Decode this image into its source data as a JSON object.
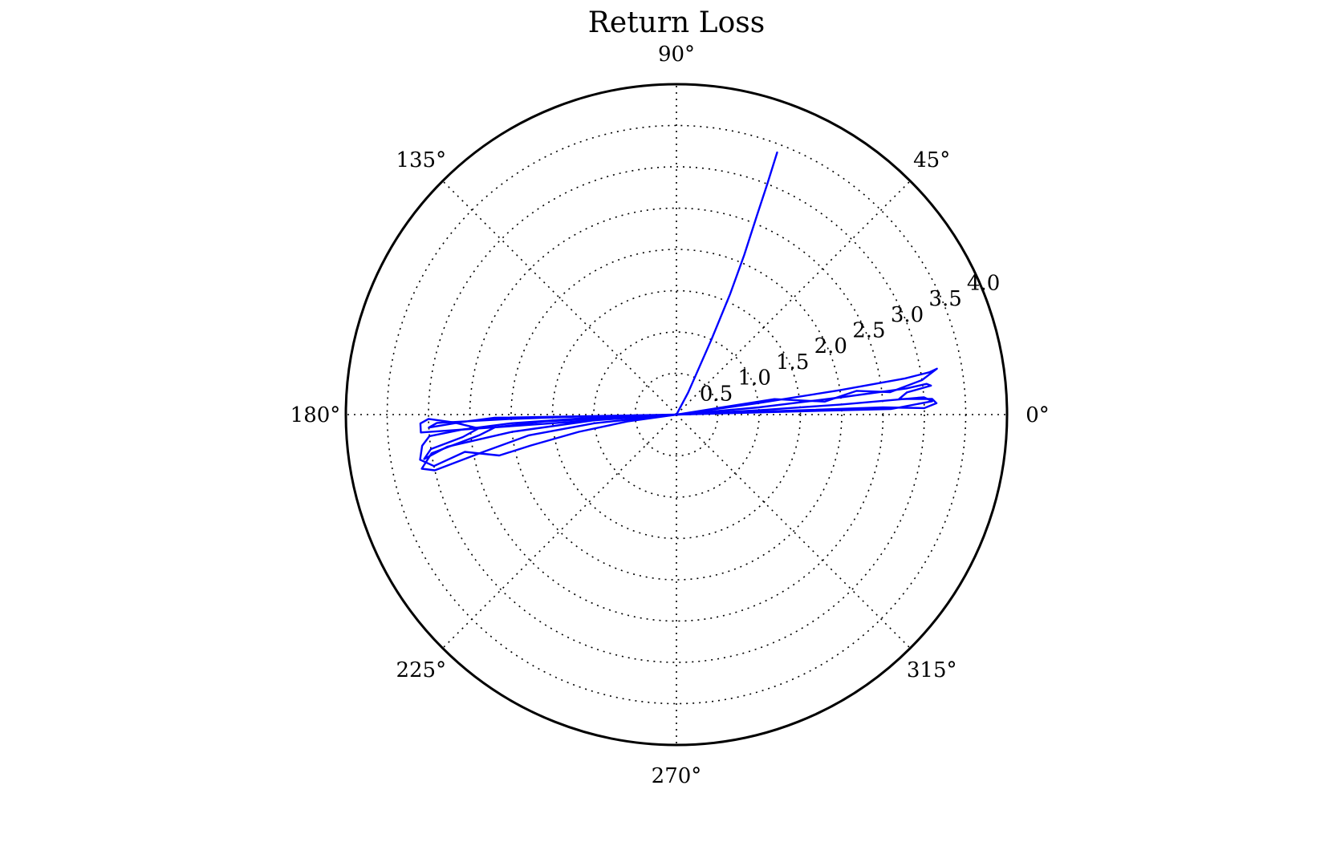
{
  "chart_data": {
    "type": "line",
    "projection": "polar",
    "title": "Return Loss",
    "rlim": [
      0,
      4.0
    ],
    "angular_ticks": [
      {
        "deg": 0,
        "label": "0°"
      },
      {
        "deg": 45,
        "label": "45°"
      },
      {
        "deg": 90,
        "label": "90°"
      },
      {
        "deg": 135,
        "label": "135°"
      },
      {
        "deg": 180,
        "label": "180°"
      },
      {
        "deg": 225,
        "label": "225°"
      },
      {
        "deg": 270,
        "label": "270°"
      },
      {
        "deg": 315,
        "label": "315°"
      }
    ],
    "radial_ticks": [
      {
        "r": 0.5,
        "label": "0.5"
      },
      {
        "r": 1.0,
        "label": "1.0"
      },
      {
        "r": 1.5,
        "label": "1.5"
      },
      {
        "r": 2.0,
        "label": "2.0"
      },
      {
        "r": 2.5,
        "label": "2.5"
      },
      {
        "r": 3.0,
        "label": "3.0"
      },
      {
        "r": 3.5,
        "label": "3.5"
      },
      {
        "r": 4.0,
        "label": "4.0"
      }
    ],
    "radial_label_angle_deg": 22.5,
    "grid": true,
    "line_color": "#0000ff",
    "series": [
      {
        "points": [
          [
            0,
            0
          ],
          [
            62,
            0.3
          ],
          [
            65,
            1.0
          ],
          [
            66,
            1.6
          ],
          [
            67,
            2.1
          ],
          [
            68,
            2.6
          ],
          [
            68.5,
            3.0
          ],
          [
            69,
            3.4
          ]
        ]
      },
      {
        "points": [
          [
            0,
            0
          ],
          [
            8,
            1.0
          ],
          [
            8.5,
            2.0
          ],
          [
            9.0,
            2.8
          ],
          [
            9.5,
            3.1
          ],
          [
            10,
            3.2
          ],
          [
            8,
            3.0
          ],
          [
            6,
            2.6
          ],
          [
            7.5,
            2.2
          ],
          [
            5,
            1.8
          ],
          [
            9,
            1.2
          ],
          [
            0,
            0
          ]
        ]
      },
      {
        "points": [
          [
            0,
            0
          ],
          [
            5,
            1.0
          ],
          [
            6,
            2.0
          ],
          [
            6.5,
            2.8
          ],
          [
            7,
            3.05
          ],
          [
            6.5,
            3.1
          ],
          [
            5.5,
            2.8
          ],
          [
            4,
            2.7
          ],
          [
            3.5,
            3.1
          ],
          [
            2.5,
            3.15
          ],
          [
            1.5,
            3.0
          ],
          [
            2,
            2.5
          ],
          [
            0,
            0
          ]
        ]
      },
      {
        "points": [
          [
            0,
            0
          ],
          [
            3,
            1.0
          ],
          [
            3.5,
            2.0
          ],
          [
            4,
            3.0
          ],
          [
            3,
            3.1
          ],
          [
            1.5,
            2.6
          ],
          [
            0,
            0
          ]
        ]
      },
      {
        "points": [
          [
            0,
            0
          ],
          [
            182,
            1.0
          ],
          [
            183,
            2.0
          ],
          [
            184,
            2.6
          ],
          [
            185,
            3.0
          ],
          [
            187,
            3.1
          ],
          [
            190,
            3.15
          ],
          [
            192,
            3.0
          ],
          [
            190,
            2.6
          ],
          [
            193,
            2.2
          ],
          [
            192,
            1.8
          ],
          [
            190,
            1.2
          ],
          [
            188,
            0.6
          ],
          [
            0,
            0
          ]
        ]
      },
      {
        "points": [
          [
            0,
            0
          ],
          [
            184,
            1.0
          ],
          [
            186,
            2.0
          ],
          [
            188,
            2.8
          ],
          [
            190,
            3.1
          ],
          [
            188,
            3.0
          ],
          [
            186,
            2.6
          ],
          [
            184,
            2.4
          ],
          [
            182,
            2.7
          ],
          [
            181,
            3.0
          ],
          [
            182,
            3.1
          ],
          [
            184,
            3.1
          ],
          [
            0,
            0
          ]
        ]
      },
      {
        "points": [
          [
            0,
            0
          ],
          [
            186,
            1.0
          ],
          [
            188,
            1.8
          ],
          [
            191,
            2.4
          ],
          [
            193,
            3.0
          ],
          [
            192,
            3.15
          ],
          [
            189,
            3.0
          ],
          [
            186,
            2.4
          ],
          [
            184,
            2.2
          ],
          [
            183,
            1.6
          ],
          [
            0,
            0
          ]
        ]
      },
      {
        "points": [
          [
            0,
            0
          ],
          [
            181,
            1.0
          ],
          [
            181.5,
            2.0
          ],
          [
            182,
            2.9
          ],
          [
            183,
            3.0
          ],
          [
            182,
            2.6
          ],
          [
            181,
            2.2
          ],
          [
            0,
            0
          ]
        ]
      }
    ]
  }
}
